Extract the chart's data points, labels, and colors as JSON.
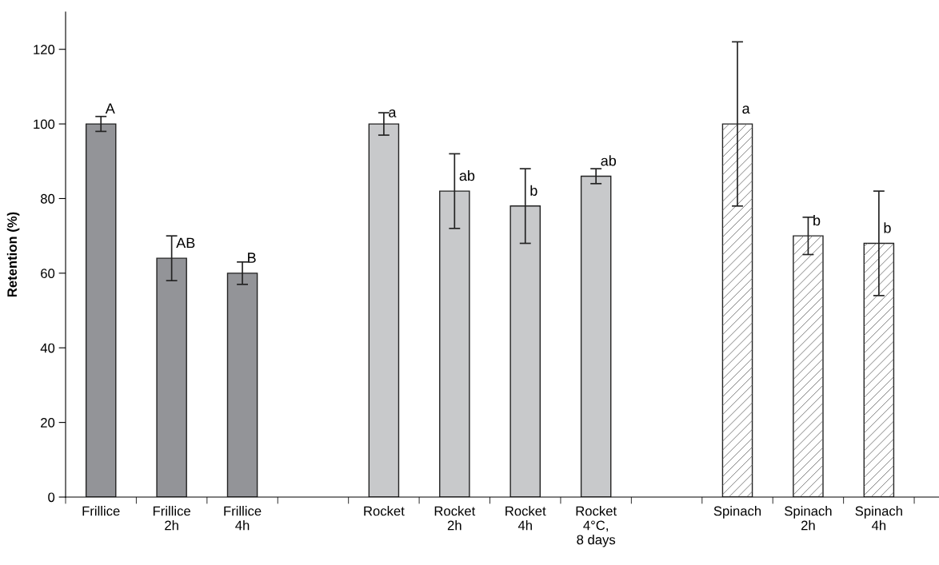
{
  "chart_data": {
    "type": "bar",
    "ylabel": "Retention (%)",
    "categories": [
      "Frillice",
      "Frillice\n2h",
      "Frillice\n4h",
      null,
      "Rocket",
      "Rocket\n2h",
      "Rocket\n4h",
      "Rocket\n4°C,\n8 days",
      null,
      "Spinach",
      "Spinach\n2h",
      "Spinach\n4h"
    ],
    "values": [
      100,
      64,
      60,
      null,
      100,
      82,
      78,
      86,
      null,
      100,
      70,
      68
    ],
    "errors": [
      [
        98,
        102
      ],
      [
        58,
        70
      ],
      [
        57,
        63
      ],
      null,
      [
        97,
        103
      ],
      [
        72,
        92
      ],
      [
        68,
        88
      ],
      [
        84,
        88
      ],
      null,
      [
        78,
        122
      ],
      [
        65,
        75
      ],
      [
        54,
        82
      ]
    ],
    "colors": [
      "#939498",
      "#939498",
      "#939498",
      null,
      "#c8c9cb",
      "#c8c9cb",
      "#c8c9cb",
      "#c8c9cb",
      null,
      "#ffffff",
      "#ffffff",
      "#ffffff"
    ],
    "ylim": [
      0,
      130
    ],
    "yticks": [
      0,
      20,
      40,
      60,
      80,
      100,
      120
    ],
    "grid": false,
    "annotations": [
      {
        "text": "A",
        "x": "Frillice",
        "y": 102
      },
      {
        "text": "AB",
        "x": "Frillice\n2h",
        "y": 66
      },
      {
        "text": "B",
        "x": "Frillice\n4h",
        "y": 62
      },
      {
        "text": "a",
        "x": "Rocket",
        "y": 101
      },
      {
        "text": "ab",
        "x": "Rocket\n2h",
        "y": 84
      },
      {
        "text": "b",
        "x": "Rocket\n4h",
        "y": 80
      },
      {
        "text": "ab",
        "x": "Rocket\n4°C,\n8 days",
        "y": 88
      },
      {
        "text": "a",
        "x": "Spinach",
        "y": 102
      },
      {
        "text": "b",
        "x": "Spinach\n2h",
        "y": 72
      },
      {
        "text": "b",
        "x": "Spinach\n4h",
        "y": 70
      }
    ]
  }
}
